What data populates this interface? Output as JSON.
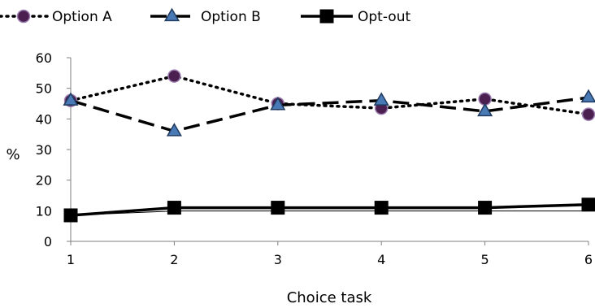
{
  "chart_data": {
    "type": "line",
    "x": [
      1,
      2,
      3,
      4,
      5,
      6
    ],
    "x_tick_labels": [
      "1",
      "2",
      "3",
      "4",
      "5",
      "6"
    ],
    "y_tick_labels": [
      "0",
      "10",
      "20",
      "30",
      "40",
      "50",
      "60"
    ],
    "xlabel": "Choice task",
    "ylabel": "%",
    "ylim": [
      0,
      60
    ],
    "grid": false,
    "legend_position": "top",
    "series": [
      {
        "name": "Option A",
        "values": [
          46,
          54,
          45,
          43.5,
          46.5,
          41.5
        ],
        "line_style": "dotted",
        "marker": "circle",
        "marker_fill": "#4b1f4f",
        "marker_edge": "#9b7fb0",
        "line_color": "#000000"
      },
      {
        "name": "Option B",
        "values": [
          46,
          36,
          44.5,
          46,
          42.5,
          47
        ],
        "line_style": "dashed",
        "marker": "triangle",
        "marker_fill": "#4a7ab5",
        "marker_edge": "#1f3a5f",
        "line_color": "#000000"
      },
      {
        "name": "Opt-out",
        "values": [
          8.5,
          11,
          11,
          11,
          11,
          12
        ],
        "line_style": "solid",
        "marker": "square",
        "marker_fill": "#000000",
        "marker_edge": "#000000",
        "line_color": "#000000"
      }
    ]
  }
}
